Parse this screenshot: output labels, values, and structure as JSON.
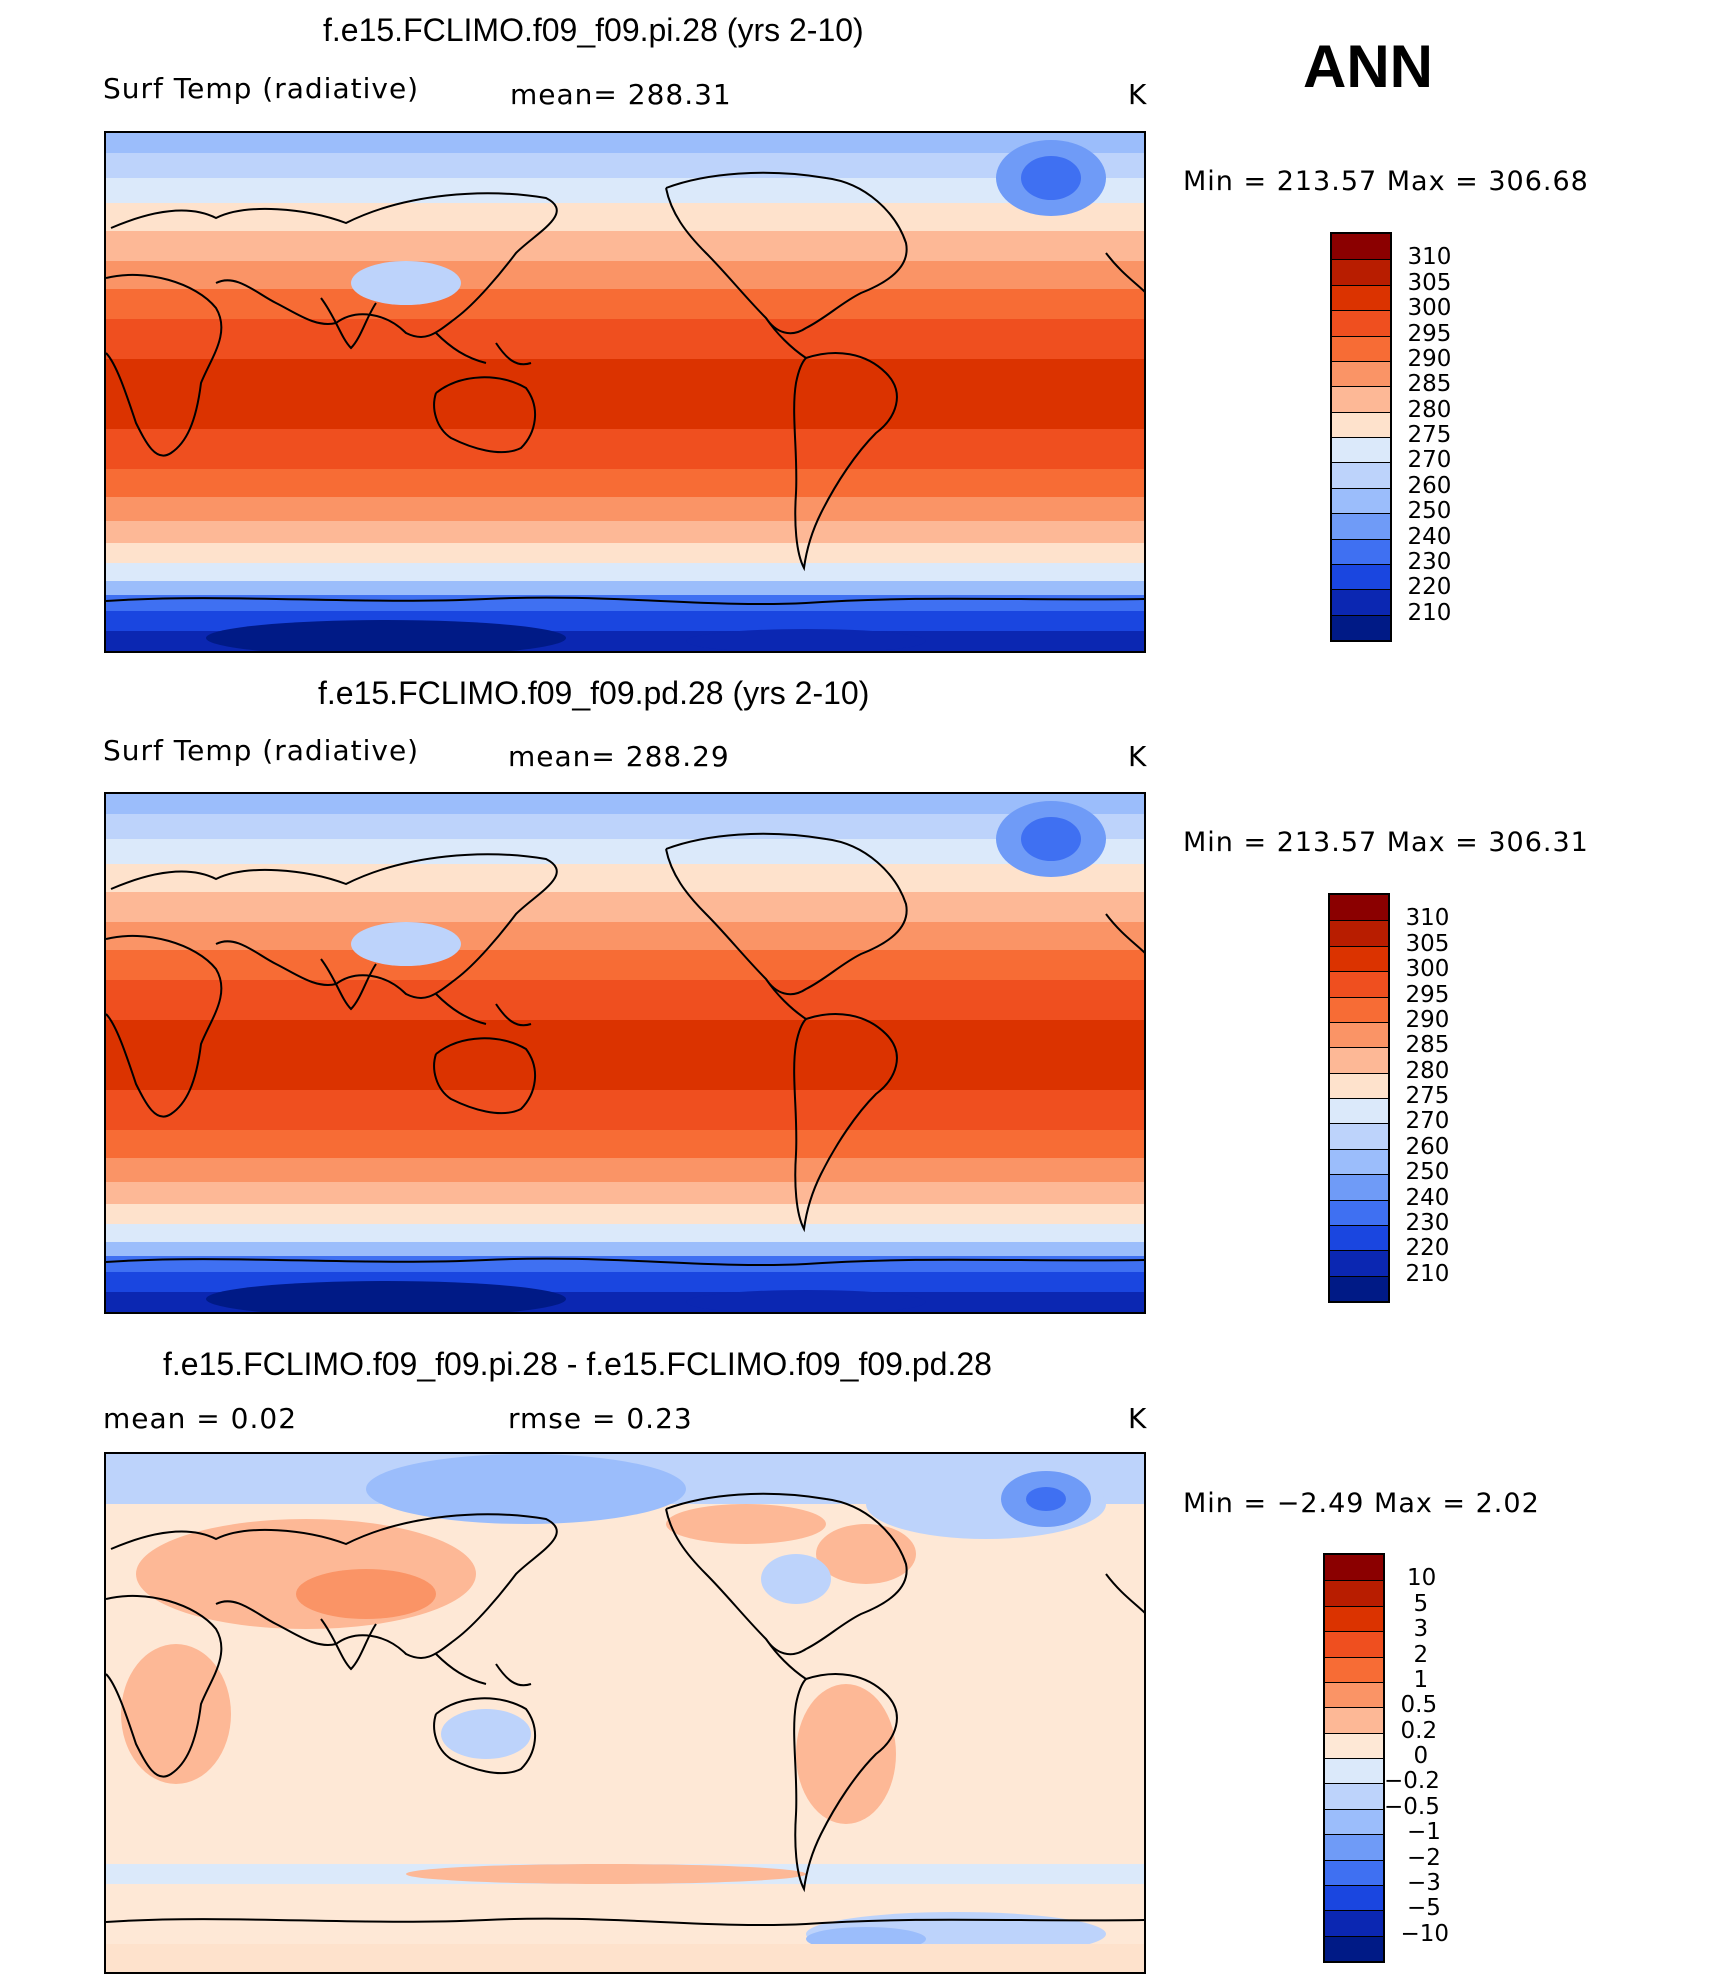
{
  "season": "ANN",
  "panels": [
    {
      "title": "f.e15.FCLIMO.f09_f09.pi.28 (yrs 2-10)",
      "variable": "Surf Temp (radiative)",
      "stat": "mean=  288.31",
      "units": "K",
      "minmax": "Min  =  213.57  Max  =  306.68",
      "scale": "abs"
    },
    {
      "title": "f.e15.FCLIMO.f09_f09.pd.28 (yrs 2-10)",
      "variable": "Surf Temp (radiative)",
      "stat": "mean=  288.29",
      "units": "K",
      "minmax": "Min  =  213.57  Max  =  306.31",
      "scale": "abs"
    },
    {
      "title": "f.e15.FCLIMO.f09_f09.pi.28 - f.e15.FCLIMO.f09_f09.pd.28",
      "variable": "mean  =       0.02",
      "stat": "rmse  =       0.23",
      "units": "K",
      "minmax": "Min  =     −2.49  Max  =       2.02",
      "scale": "diff"
    }
  ],
  "colorbars": {
    "abs": {
      "labels": [
        "310",
        "305",
        "300",
        "295",
        "290",
        "285",
        "280",
        "275",
        "270",
        "260",
        "250",
        "240",
        "230",
        "220",
        "210"
      ],
      "colors": [
        "#8b0000",
        "#b81d00",
        "#db3300",
        "#ef4f1f",
        "#f76c35",
        "#fa9466",
        "#fdb896",
        "#fee2cc",
        "#dbe9fa",
        "#bdd3fb",
        "#9bbdfb",
        "#6f9bf7",
        "#3f70f2",
        "#1a46e0",
        "#0b27b2",
        "#001a86"
      ]
    },
    "diff": {
      "labels": [
        "10",
        "5",
        "3",
        "2",
        "1",
        "0.5",
        "0.2",
        "0",
        "−0.2",
        "−0.5",
        "−1",
        "−2",
        "−3",
        "−5",
        "−10"
      ],
      "colors": [
        "#8b0000",
        "#b81d00",
        "#db3300",
        "#ef4f1f",
        "#f76c35",
        "#fa9466",
        "#fdb896",
        "#fee8d6",
        "#dbe9fa",
        "#bdd3fb",
        "#9bbdfb",
        "#6f9bf7",
        "#3f70f2",
        "#1a46e0",
        "#0b27b2",
        "#001a86"
      ]
    }
  },
  "chart_data": {
    "type": "heatmap",
    "title": "Surf Temp (radiative), ANN",
    "units": "K",
    "maps": [
      {
        "name": "f.e15.FCLIMO.f09_f09.pi.28 (yrs 2-10)",
        "mean": 288.31,
        "min": 213.57,
        "max": 306.68
      },
      {
        "name": "f.e15.FCLIMO.f09_f09.pd.28 (yrs 2-10)",
        "mean": 288.29,
        "min": 213.57,
        "max": 306.31
      },
      {
        "name": "f.e15.FCLIMO.f09_f09.pi.28 - f.e15.FCLIMO.f09_f09.pd.28",
        "mean": 0.02,
        "rmse": 0.23,
        "min": -2.49,
        "max": 2.02
      }
    ],
    "abs_levels": [
      210,
      220,
      230,
      240,
      250,
      260,
      270,
      275,
      280,
      285,
      290,
      295,
      300,
      305,
      310
    ],
    "diff_levels": [
      -10,
      -5,
      -3,
      -2,
      -1,
      -0.5,
      -0.2,
      0,
      0.2,
      0.5,
      1,
      2,
      3,
      5,
      10
    ]
  }
}
